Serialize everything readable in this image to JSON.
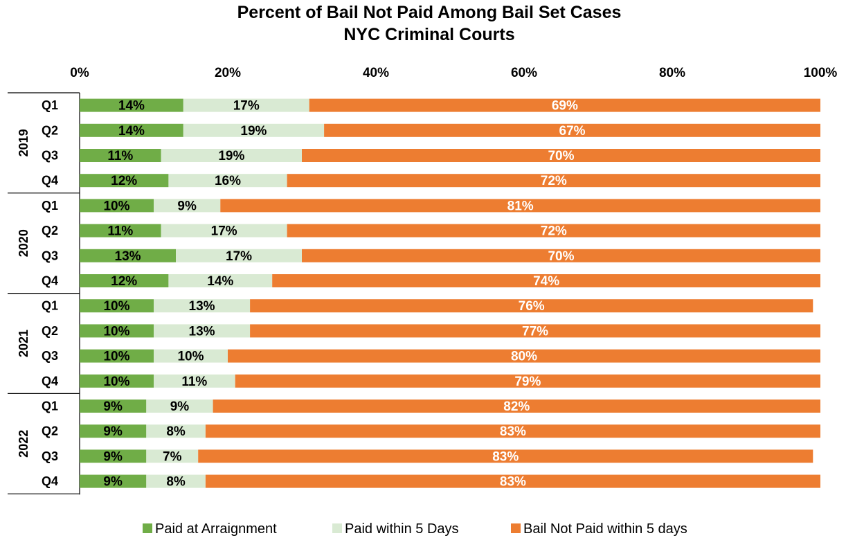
{
  "chart_data": {
    "type": "bar",
    "orientation": "horizontal",
    "stacked": true,
    "title_line1": "Percent of Bail Not Paid Among Bail Set Cases",
    "title_line2": "NYC Criminal Courts",
    "xlim": [
      0,
      100
    ],
    "x_ticks": [
      "0%",
      "20%",
      "40%",
      "60%",
      "80%",
      "100%"
    ],
    "grid": false,
    "legend_position": "bottom",
    "groups": [
      {
        "year": "2019",
        "quarters": [
          "Q1",
          "Q2",
          "Q3",
          "Q4"
        ]
      },
      {
        "year": "2020",
        "quarters": [
          "Q1",
          "Q2",
          "Q3",
          "Q4"
        ]
      },
      {
        "year": "2021",
        "quarters": [
          "Q1",
          "Q2",
          "Q3",
          "Q4"
        ]
      },
      {
        "year": "2022",
        "quarters": [
          "Q1",
          "Q2",
          "Q3",
          "Q4"
        ]
      }
    ],
    "series": [
      {
        "name": "Paid at Arraignment",
        "color": "#70ad47",
        "label_color": "#000000",
        "values": [
          14,
          14,
          11,
          12,
          10,
          11,
          13,
          12,
          10,
          10,
          10,
          10,
          9,
          9,
          9,
          9
        ]
      },
      {
        "name": "Paid within 5 Days",
        "color": "#d9ead3",
        "label_color": "#000000",
        "values": [
          17,
          19,
          19,
          16,
          9,
          17,
          17,
          14,
          13,
          13,
          10,
          11,
          9,
          8,
          7,
          8
        ]
      },
      {
        "name": "Bail Not Paid within 5 days",
        "color": "#ed7d31",
        "label_color": "#ffffff",
        "values": [
          69,
          67,
          70,
          72,
          81,
          72,
          70,
          74,
          76,
          77,
          80,
          79,
          82,
          83,
          83,
          83
        ]
      }
    ]
  }
}
